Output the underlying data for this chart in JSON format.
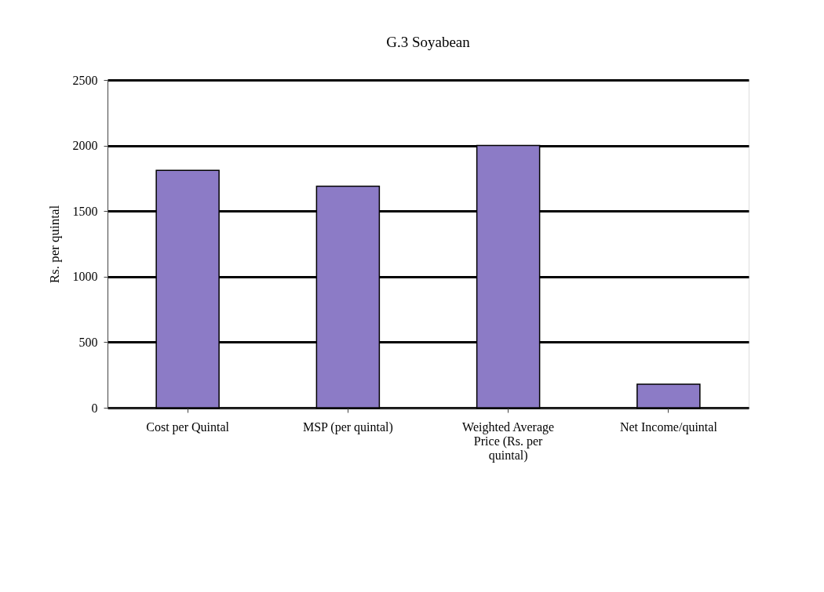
{
  "chart_data": {
    "type": "bar",
    "title": "G.3  Soyabean",
    "ylabel": "Rs. per quintal",
    "categories": [
      "Cost per Quintal",
      "MSP (per quintal)",
      "Weighted Average Price (Rs. per quintal)",
      "Net Income/quintal"
    ],
    "values": [
      1810,
      1690,
      2000,
      180
    ],
    "color": "#8c7bc6",
    "ylim": [
      0,
      2500
    ],
    "yticks": [
      0,
      500,
      1000,
      1500,
      2000,
      2500
    ],
    "grid": "y"
  }
}
